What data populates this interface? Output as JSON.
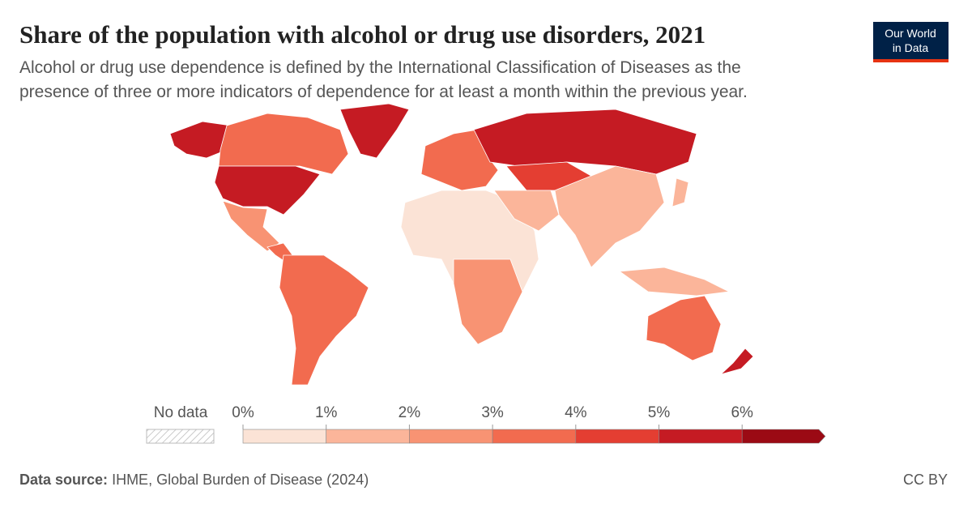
{
  "header": {
    "title": "Share of the population with alcohol or drug use disorders, 2021",
    "subtitle_lines": [
      "Alcohol or drug use dependence is defined by the International Classification of Diseases as the",
      "presence of three or more indicators of dependence for at least a month within the previous year."
    ]
  },
  "logo": {
    "lines": [
      "Our World",
      "in Data"
    ]
  },
  "legend": {
    "no_data": "No data",
    "ticks": [
      "0%",
      "1%",
      "2%",
      "3%",
      "4%",
      "5%",
      "6%"
    ],
    "colors": [
      "#fbe3d6",
      "#fbb59a",
      "#f89373",
      "#f26b4f",
      "#e43e32",
      "#c51b23",
      "#9b0a14"
    ]
  },
  "footer": {
    "source_label": "Data source:",
    "source": "IHME, Global Burden of Disease (2024)",
    "license": "CC BY"
  }
}
